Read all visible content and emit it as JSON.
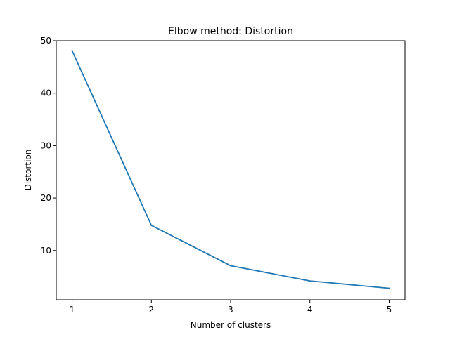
{
  "chart_data": {
    "type": "line",
    "title": "Elbow method: Distortion",
    "xlabel": "Number of clusters",
    "ylabel": "Distortion",
    "x": [
      1,
      2,
      3,
      4,
      5
    ],
    "series": [
      {
        "values": [
          48.1,
          14.8,
          7.1,
          4.2,
          2.8
        ],
        "color": "#1f77b4"
      }
    ],
    "xlim": [
      0.8,
      5.2
    ],
    "ylim": [
      0.6,
      50.0
    ],
    "xticks": [
      1,
      2,
      3,
      4,
      5
    ],
    "yticks": [
      10,
      20,
      30,
      40,
      50
    ],
    "grid": false,
    "legend": "none"
  }
}
